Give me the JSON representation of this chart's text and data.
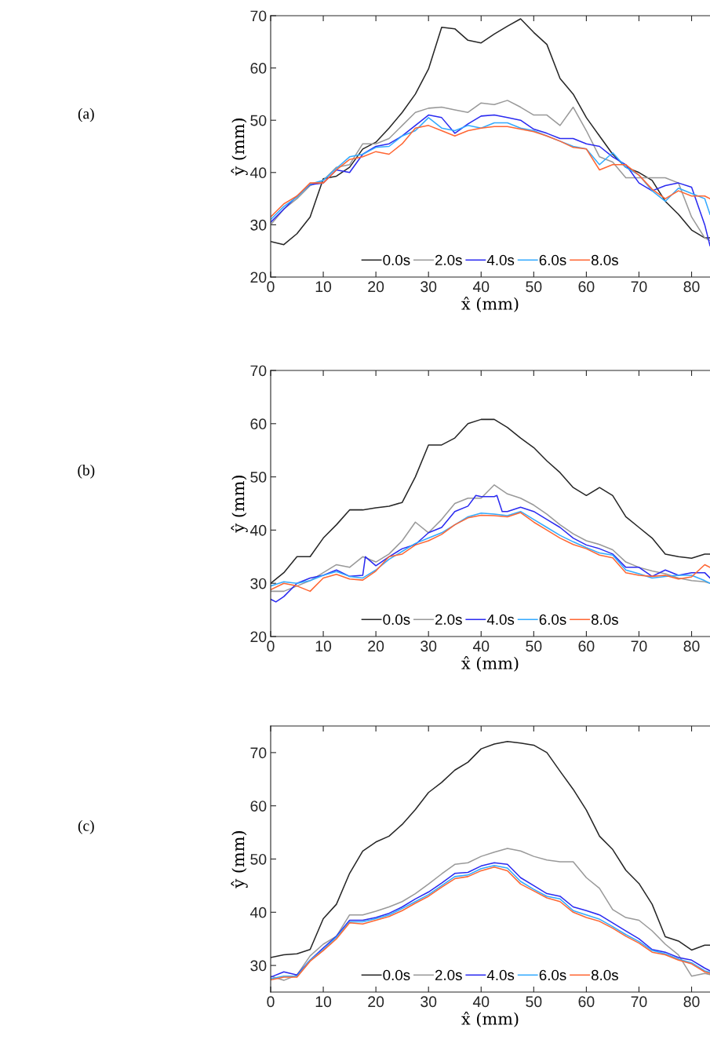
{
  "chart_data": [
    {
      "type": "line",
      "annotations": [
        "(a)"
      ],
      "xlabel": "x̂ (mm)",
      "ylabel": "ŷ (mm)",
      "xlim": [
        0,
        83.5
      ],
      "xticks": [
        0,
        10,
        20,
        30,
        40,
        50,
        60,
        70,
        80
      ],
      "ylim": [
        20,
        70
      ],
      "yticks": [
        20,
        30,
        40,
        50,
        60,
        70
      ],
      "legend": "bottom",
      "grid": false,
      "x": [
        0,
        2.5,
        5,
        7.5,
        10,
        12.5,
        15,
        17.5,
        20,
        22.5,
        25,
        27.5,
        30,
        32.5,
        35,
        37.5,
        40,
        42.5,
        45,
        47.5,
        50,
        52.5,
        55,
        57.5,
        60,
        62.5,
        65,
        67.5,
        70,
        72.5,
        75,
        77.5,
        80,
        82.5,
        83.5
      ],
      "series": [
        {
          "name": "0.0s",
          "color": "#262626",
          "values": [
            26.8,
            26.2,
            28.3,
            31.5,
            38.8,
            39.3,
            41,
            44.5,
            45.8,
            48.5,
            51.5,
            55,
            59.8,
            67.8,
            67.5,
            65.3,
            64.8,
            66.5,
            68,
            69.4,
            66.8,
            64.5,
            58,
            55,
            50.5,
            47,
            43.5,
            41,
            40,
            38.5,
            34.5,
            32,
            29,
            27.5,
            27.5
          ]
        },
        {
          "name": "2.0s",
          "color": "#999999",
          "values": [
            30,
            33,
            35,
            37.5,
            38.5,
            41,
            41.5,
            45.5,
            45.5,
            46.5,
            49,
            51.5,
            52.3,
            52.5,
            52,
            51.5,
            53.3,
            53,
            53.8,
            52.5,
            51,
            51,
            49,
            52.5,
            48,
            43,
            42,
            39,
            39,
            39,
            39,
            38,
            31.5,
            27.5,
            27
          ]
        },
        {
          "name": "4.0s",
          "color": "#2a2af0",
          "values": [
            30.5,
            33,
            35.5,
            37.7,
            38,
            40.5,
            40,
            43.5,
            45,
            45.5,
            47,
            49,
            51,
            50.5,
            47.5,
            49.3,
            50.8,
            51,
            50.5,
            50,
            48.3,
            47.5,
            46.5,
            46.5,
            45.5,
            45,
            43,
            41.5,
            38,
            36.5,
            37.5,
            38,
            37.2,
            30,
            26
          ]
        },
        {
          "name": "6.0s",
          "color": "#33aaff",
          "values": [
            31,
            33.5,
            35.3,
            37.8,
            38.5,
            40.8,
            43,
            43.5,
            44.8,
            45,
            47,
            48,
            50.5,
            48.5,
            48,
            49,
            48.5,
            49.5,
            49.5,
            48.5,
            48,
            47,
            46,
            45,
            44.5,
            41.5,
            43.8,
            41,
            39.5,
            36.5,
            34.5,
            37,
            36,
            35,
            32
          ]
        },
        {
          "name": "8.0s",
          "color": "#ff6633",
          "values": [
            31.5,
            34,
            35.5,
            38,
            38,
            40.5,
            42.5,
            43,
            44,
            43.5,
            45.5,
            48.5,
            49,
            48,
            47,
            48,
            48.5,
            48.8,
            48.8,
            48.3,
            47.8,
            47,
            46,
            44.8,
            44.5,
            40.5,
            41.5,
            41.5,
            39.5,
            36.8,
            35,
            36.5,
            35.5,
            35.5,
            35
          ]
        }
      ]
    },
    {
      "type": "line",
      "annotations": [
        "(b)"
      ],
      "xlabel": "x̂ (mm)",
      "ylabel": "ŷ (mm)",
      "xlim": [
        0,
        83.5
      ],
      "xticks": [
        0,
        10,
        20,
        30,
        40,
        50,
        60,
        70,
        80
      ],
      "ylim": [
        20,
        70
      ],
      "yticks": [
        20,
        30,
        40,
        50,
        60,
        70
      ],
      "legend": "bottom",
      "grid": false,
      "x": [
        0,
        2.5,
        5,
        7.5,
        10,
        12.5,
        15,
        17.5,
        20,
        22.5,
        25,
        27.5,
        30,
        32.5,
        35,
        37.5,
        40,
        42.5,
        45,
        47.5,
        50,
        52.5,
        55,
        57.5,
        60,
        62.5,
        65,
        67.5,
        70,
        72.5,
        75,
        77.5,
        80,
        82.5,
        83.5
      ],
      "series": [
        {
          "name": "0.0s",
          "color": "#262626",
          "values": [
            30,
            32,
            35,
            35,
            38.5,
            41,
            43.8,
            43.8,
            44.2,
            44.5,
            45.2,
            50,
            56,
            56,
            57.3,
            60,
            60.8,
            60.8,
            59.3,
            57.3,
            55.5,
            53,
            50.8,
            48,
            46.5,
            48,
            46.5,
            42.5,
            40.5,
            38.5,
            35.5,
            35,
            34.7,
            35.5,
            35.5
          ]
        },
        {
          "name": "2.0s",
          "color": "#999999",
          "values": [
            28.5,
            28.5,
            29.5,
            30.5,
            32,
            33.5,
            33,
            35,
            34,
            35.5,
            38,
            41.5,
            39.5,
            42,
            45,
            46,
            46,
            48.5,
            46.8,
            46,
            44.7,
            43,
            41,
            39.3,
            38,
            37.3,
            36.3,
            34,
            33,
            32.3,
            31.8,
            31,
            30.5,
            30.3,
            30
          ]
        },
        {
          "name": "4.0s",
          "color": "#2a2af0",
          "x": [
            0,
            1,
            2.5,
            5,
            7.5,
            10,
            12.5,
            15,
            17.5,
            18,
            20,
            22.5,
            25,
            27.5,
            30,
            32.5,
            35,
            37.5,
            39,
            40,
            42.5,
            43,
            44,
            45,
            47.5,
            50,
            52.5,
            55,
            57.5,
            60,
            62.5,
            65,
            67.5,
            70,
            72.5,
            75,
            77.5,
            80,
            82.5,
            83.5
          ],
          "values": [
            27,
            26.5,
            27.5,
            30,
            31,
            31.5,
            32.5,
            31.3,
            31.5,
            35,
            33.3,
            35,
            36.5,
            37.3,
            39.5,
            40.5,
            43.5,
            44.5,
            46.5,
            46.3,
            46.3,
            46.5,
            43.5,
            43.5,
            44.3,
            43.5,
            42,
            40.5,
            38.5,
            37.2,
            36.5,
            35.5,
            33,
            33,
            31.3,
            32.5,
            31.5,
            32,
            32,
            31
          ]
        },
        {
          "name": "6.0s",
          "color": "#33aaff",
          "values": [
            29.5,
            30.3,
            30,
            30.5,
            31.5,
            32.2,
            31.3,
            31,
            32.5,
            34.5,
            36,
            37.5,
            38.5,
            39.5,
            41,
            42.5,
            43.2,
            43,
            42.7,
            43.5,
            42,
            40.5,
            39,
            37.8,
            36.7,
            35.7,
            35.3,
            32.5,
            31.8,
            31,
            31.3,
            31.5,
            31.5,
            30.5,
            30
          ]
        },
        {
          "name": "8.0s",
          "color": "#ff6633",
          "values": [
            28.8,
            30,
            29.5,
            28.5,
            31,
            31.7,
            30.8,
            30.6,
            32.3,
            35,
            35.5,
            37.2,
            38,
            39.2,
            41,
            42.3,
            42.8,
            42.7,
            42.5,
            43.3,
            41.5,
            40,
            38.5,
            37.3,
            36.5,
            35.3,
            34.8,
            32,
            31.5,
            31.3,
            31.5,
            30.8,
            31.2,
            33.5,
            33
          ]
        }
      ]
    },
    {
      "type": "line",
      "annotations": [
        "(c)"
      ],
      "xlabel": "x̂ (mm)",
      "ylabel": "ŷ (mm)",
      "xlim": [
        0,
        83.5
      ],
      "xticks": [
        0,
        10,
        20,
        30,
        40,
        50,
        60,
        70,
        80
      ],
      "ylim": [
        25,
        75
      ],
      "yticks": [
        30,
        40,
        50,
        60,
        70
      ],
      "legend": "bottom",
      "grid": false,
      "x": [
        0,
        2.5,
        5,
        7.5,
        10,
        12.5,
        15,
        17.5,
        20,
        22.5,
        25,
        27.5,
        30,
        32.5,
        35,
        37.5,
        40,
        42.5,
        45,
        47.5,
        50,
        52.5,
        55,
        57.5,
        60,
        62.5,
        65,
        67.5,
        70,
        72.5,
        75,
        77.5,
        80,
        82.5,
        83.5
      ],
      "series": [
        {
          "name": "0.0s",
          "color": "#262626",
          "values": [
            31.5,
            32,
            32.2,
            33,
            38.8,
            41.5,
            47.3,
            51.5,
            53.2,
            54.3,
            56.5,
            59.3,
            62.5,
            64.4,
            66.7,
            68.2,
            70.7,
            71.6,
            72.1,
            71.8,
            71.4,
            70,
            66.5,
            63.1,
            59.2,
            54.3,
            51.8,
            47.9,
            45.4,
            41.5,
            35.4,
            34.6,
            32.9,
            33.8,
            33.8
          ]
        },
        {
          "name": "2.0s",
          "color": "#999999",
          "values": [
            28,
            27.2,
            28.2,
            31.8,
            34,
            35.5,
            39.5,
            39.5,
            40.2,
            41,
            42,
            43.5,
            45.3,
            47.2,
            49,
            49.3,
            50.5,
            51.3,
            52,
            51.5,
            50.5,
            49.8,
            49.5,
            49.5,
            46.5,
            44.5,
            40.5,
            39,
            38.5,
            36.5,
            34,
            32,
            28,
            28.5,
            28.3
          ]
        },
        {
          "name": "4.0s",
          "color": "#2a2af0",
          "values": [
            27.8,
            28.8,
            28.2,
            31,
            33.3,
            35.5,
            38.5,
            38.5,
            39,
            39.8,
            41,
            42.5,
            43.8,
            45.5,
            47.3,
            47.5,
            48.7,
            49.3,
            49,
            46.5,
            45,
            43.5,
            43,
            41,
            40.3,
            39.5,
            38,
            36.5,
            35,
            33,
            32.5,
            31.5,
            31,
            29.5,
            29
          ]
        },
        {
          "name": "6.0s",
          "color": "#33aaff",
          "values": [
            27.5,
            28,
            28,
            31,
            33,
            35.3,
            38.2,
            38.2,
            38.8,
            39.5,
            40.7,
            42,
            43.3,
            45,
            46.7,
            47,
            48.2,
            48.8,
            48.3,
            45.8,
            44.3,
            43,
            42.5,
            40.3,
            39.5,
            38.7,
            37.3,
            35.8,
            34.5,
            32.8,
            32.2,
            31.2,
            30.5,
            29,
            28.7
          ]
        },
        {
          "name": "8.0s",
          "color": "#ff6633",
          "values": [
            27.3,
            27.8,
            27.8,
            30.8,
            32.8,
            35,
            38,
            37.8,
            38.5,
            39.2,
            40.3,
            41.7,
            43,
            44.7,
            46.3,
            46.7,
            47.8,
            48.5,
            47.8,
            45.3,
            44,
            42.7,
            42,
            40,
            39,
            38.3,
            37,
            35.5,
            34.2,
            32.5,
            32,
            31,
            30.3,
            28.8,
            28.5
          ]
        }
      ]
    }
  ]
}
